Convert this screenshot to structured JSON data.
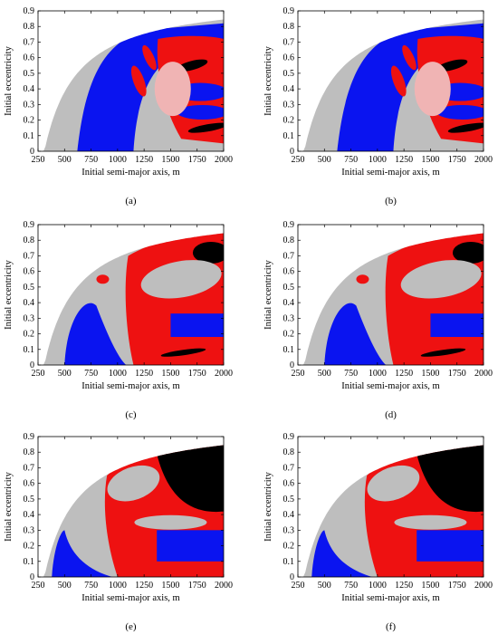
{
  "panels": [
    {
      "id": "a",
      "label": "(a)",
      "variant": "a"
    },
    {
      "id": "b",
      "label": "(b)",
      "variant": "b"
    },
    {
      "id": "c",
      "label": "(c)",
      "variant": "c"
    },
    {
      "id": "d",
      "label": "(d)",
      "variant": "d"
    },
    {
      "id": "e",
      "label": "(e)",
      "variant": "e"
    },
    {
      "id": "f",
      "label": "(f)",
      "variant": "f"
    }
  ],
  "axes": {
    "xlabel": "Initial semi-major axis, m",
    "ylabel": "Initial eccentricity",
    "xticks": [
      "250",
      "500",
      "750",
      "1000",
      "1250",
      "1500",
      "1750",
      "2000"
    ],
    "yticks": [
      "0",
      "0.1",
      "0.2",
      "0.3",
      "0.4",
      "0.5",
      "0.6",
      "0.7",
      "0.8",
      "0.9"
    ]
  },
  "colors": {
    "gray": "#bebebe",
    "blue": "#0a14f0",
    "red": "#ee1111",
    "black": "#000000",
    "pink": "#f0b4b4"
  },
  "chart_data": {
    "type": "heatmap",
    "xlabel": "Initial semi-major axis, m",
    "ylabel": "Initial eccentricity",
    "xlim": [
      250,
      2000
    ],
    "ylim": [
      0,
      0.9
    ],
    "panel_labels": [
      "(a)",
      "(b)",
      "(c)",
      "(d)",
      "(e)",
      "(f)"
    ]
  }
}
